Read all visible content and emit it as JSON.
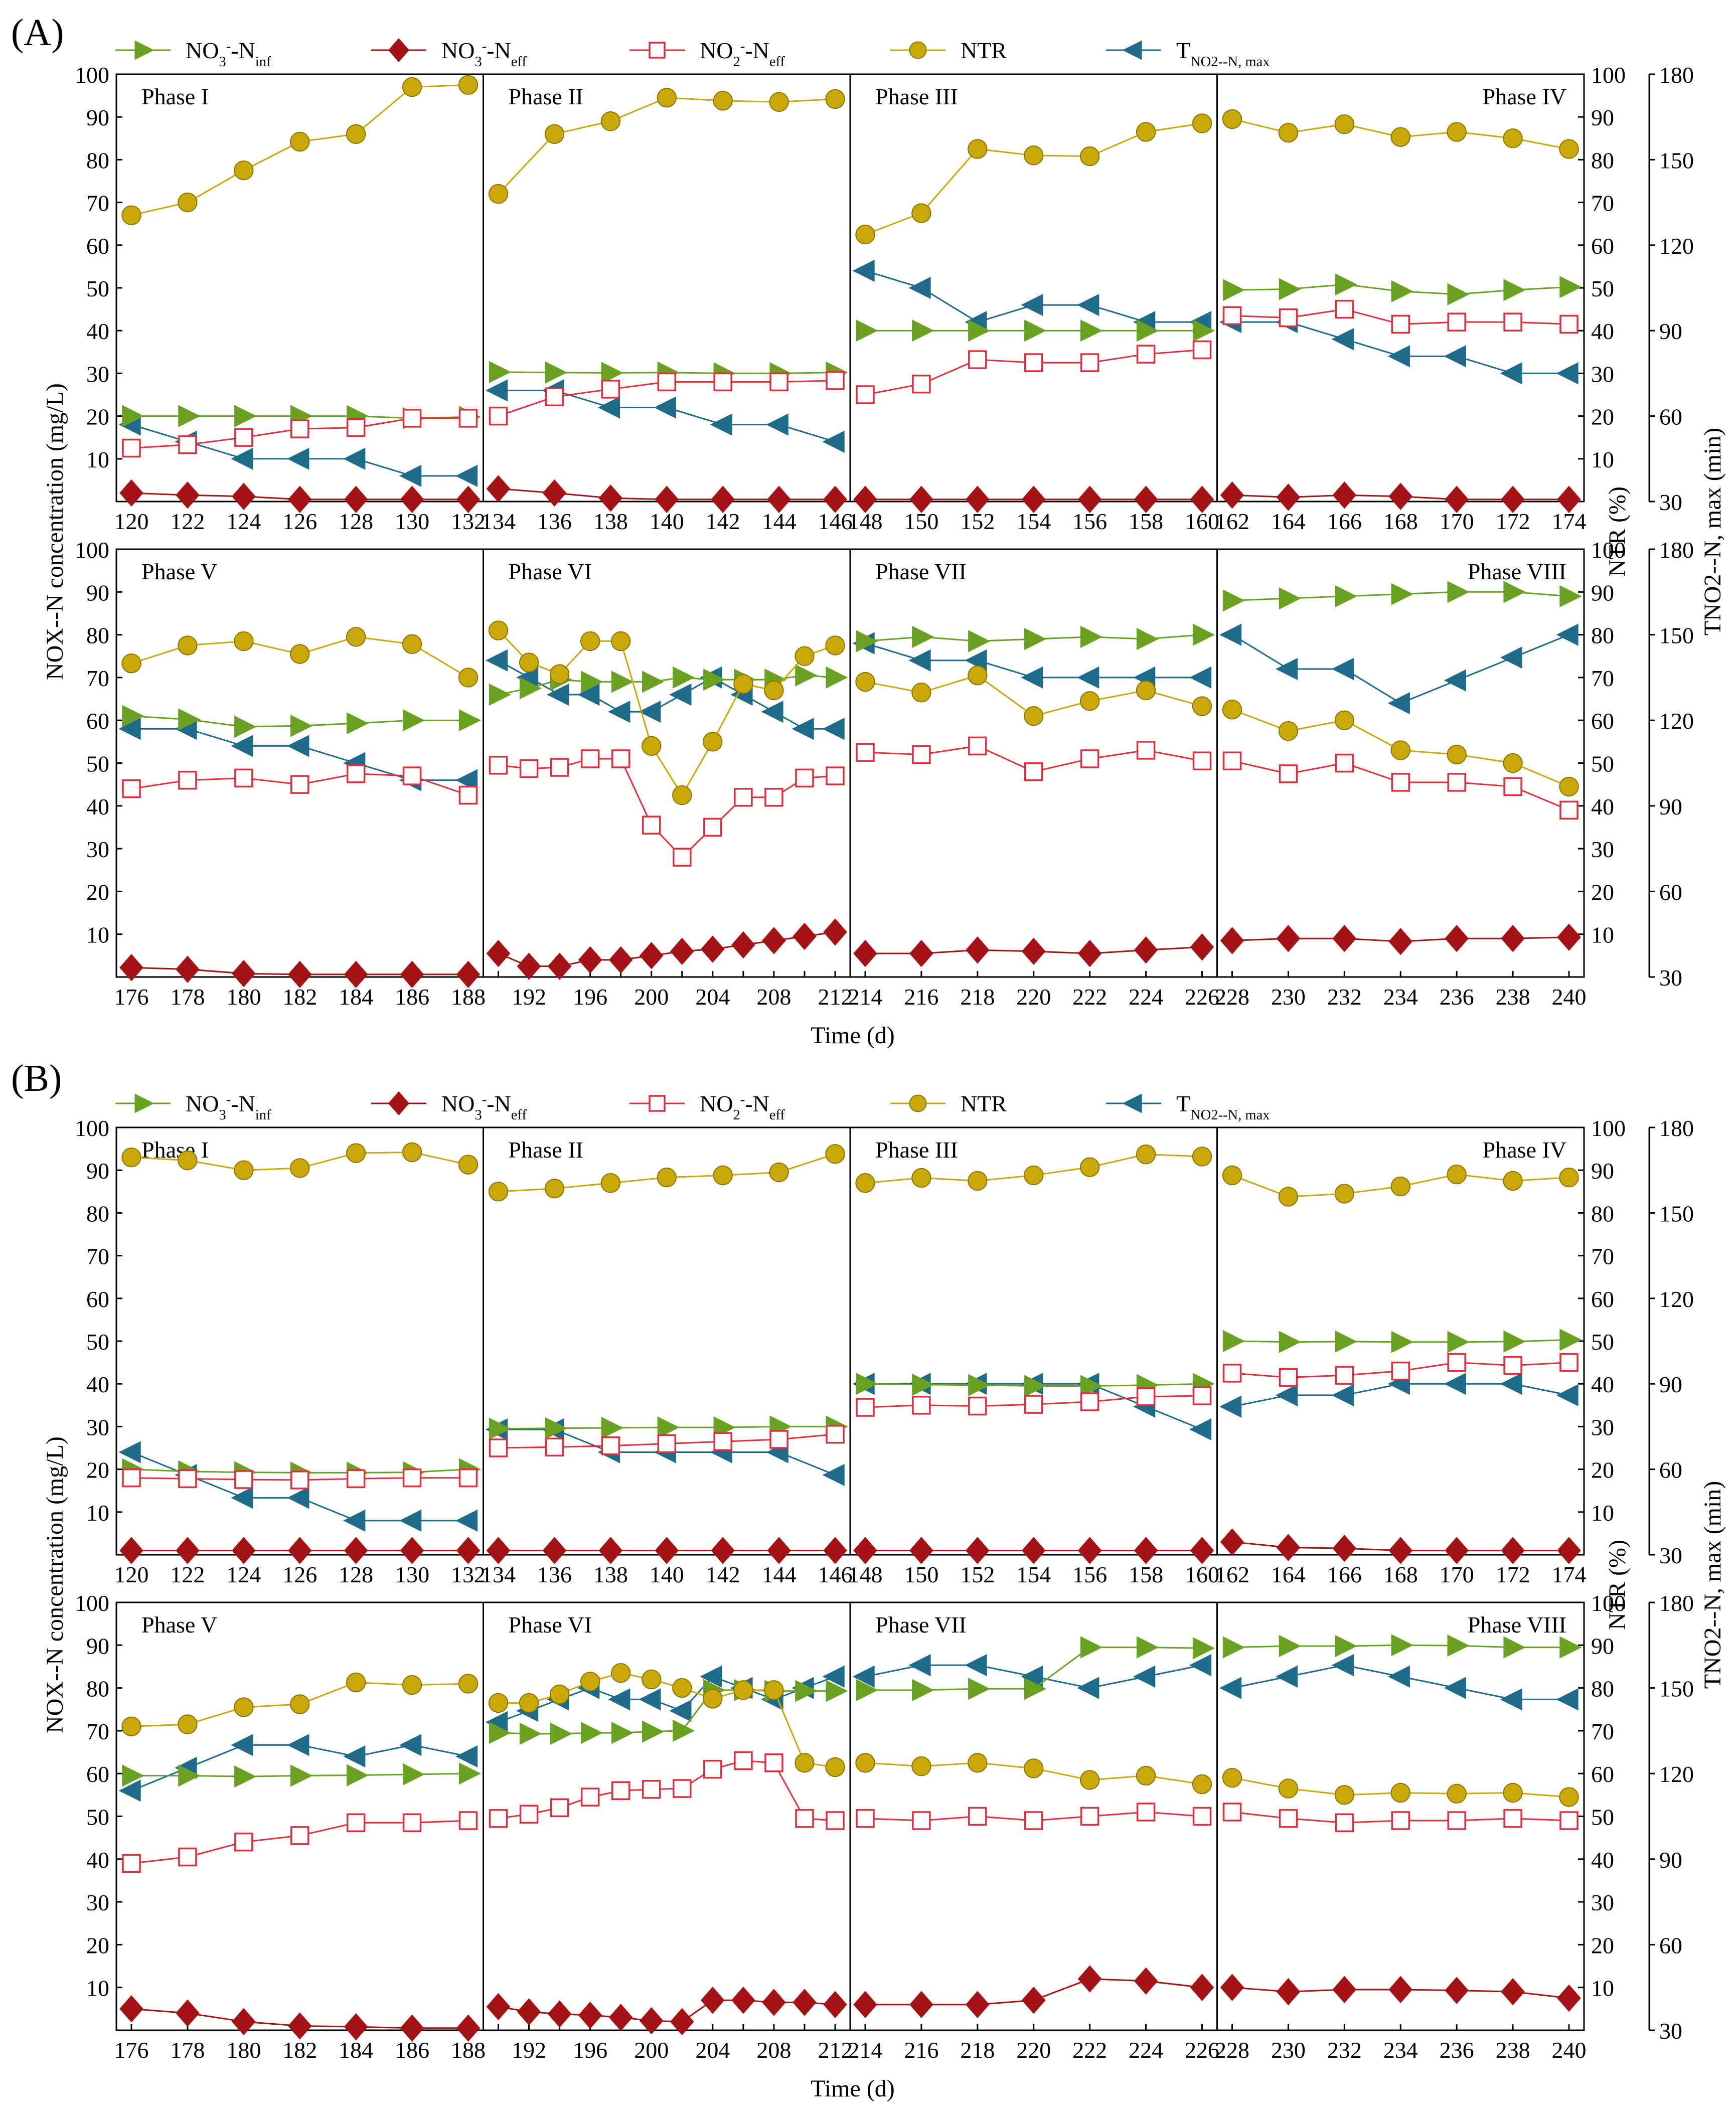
{
  "figure": {
    "panel_labels": [
      "(A)",
      "(B)"
    ],
    "x_axis_title": "Time (d)",
    "left_axis_title": "NOX--N concentration (mg/L)",
    "right_axis_title_1": "NTR (%)",
    "right_axis_title_2": "TNO2--N, max (min)",
    "legend": {
      "no3_inf": "NO3--Ninf",
      "no3_eff": "NO3--Neff",
      "no2_eff": "NO2--Neff",
      "ntr": "NTR",
      "t_no2_max": "TNO2--N, max"
    },
    "colors": {
      "no3_inf": "#6aa122",
      "no3_eff": "#a31214",
      "no2_eff": "#e0303e",
      "ntr": "#c9a809",
      "t_no2_max": "#1f6c8a"
    },
    "icons": {
      "no3_inf": "right-triangle-marker",
      "no3_eff": "diamond-marker",
      "no2_eff": "open-square-marker",
      "ntr": "circle-marker",
      "t_no2_max": "left-triangle-marker"
    }
  },
  "chart_data": [
    {
      "id": "A",
      "type": "line",
      "panel_label": "(A)",
      "xlabel": "Time (d)",
      "ylabel_left": "NOX--N concentration (mg/L)",
      "ylabel_right_1": "NTR (%)",
      "ylabel_right_2": "TNO2--N, max (min)",
      "ylim_left": [
        0,
        100
      ],
      "ylim_right_ntr": [
        0,
        100
      ],
      "ylim_right_t": [
        30,
        180
      ],
      "left_ticks": [
        10,
        20,
        30,
        40,
        50,
        60,
        70,
        80,
        90,
        100
      ],
      "ntr_ticks": [
        10,
        20,
        30,
        40,
        50,
        60,
        70,
        80,
        90,
        100
      ],
      "t_ticks": [
        30,
        60,
        90,
        120,
        150,
        180
      ],
      "phases": [
        {
          "label": "Phase I",
          "x": [
            120,
            122,
            124,
            126,
            128,
            130,
            132
          ],
          "no3_inf": [
            20,
            20,
            20,
            20,
            20,
            19.5,
            19.8
          ],
          "no3_eff": [
            2,
            1.5,
            1.2,
            0.5,
            0.5,
            0.5,
            0.5
          ],
          "no2_eff": [
            12.5,
            13.3,
            15,
            17,
            17.3,
            19.5,
            19.5
          ],
          "ntr": [
            67,
            70,
            77.5,
            84.2,
            86,
            97,
            97.5
          ],
          "t_no2_max": [
            57,
            51,
            45,
            45,
            45,
            39,
            39
          ]
        },
        {
          "label": "Phase II",
          "x": [
            134,
            136,
            138,
            140,
            142,
            144,
            146
          ],
          "no3_inf": [
            30.3,
            30.2,
            30.1,
            30.2,
            30,
            30,
            30.2
          ],
          "no3_eff": [
            3,
            2,
            0.8,
            0.5,
            0.5,
            0.5,
            0.5
          ],
          "no2_eff": [
            20,
            24.5,
            26.3,
            28,
            28,
            28,
            28.3
          ],
          "ntr": [
            72,
            86,
            89,
            94.5,
            93.8,
            93.5,
            94.2
          ],
          "t_no2_max": [
            69,
            69,
            63,
            63,
            57,
            57,
            51
          ]
        },
        {
          "label": "Phase III",
          "x": [
            148,
            150,
            152,
            154,
            156,
            158,
            160
          ],
          "no3_inf": [
            40,
            40,
            40,
            40,
            40,
            40,
            40
          ],
          "no3_eff": [
            0.5,
            0.5,
            0.5,
            0.5,
            0.5,
            0.5,
            0.5
          ],
          "no2_eff": [
            25,
            27.5,
            33.2,
            32.5,
            32.5,
            34.5,
            35.5
          ],
          "ntr": [
            62.5,
            67.5,
            82.5,
            81,
            80.8,
            86.5,
            88.5
          ],
          "t_no2_max": [
            111,
            105,
            93,
            99,
            99,
            93,
            93
          ]
        },
        {
          "label": "Phase IV",
          "x": [
            162,
            164,
            166,
            168,
            170,
            172,
            174
          ],
          "no3_inf": [
            49.5,
            49.7,
            50.8,
            49.2,
            48.5,
            49.5,
            50.2
          ],
          "no3_eff": [
            1.5,
            1,
            1.5,
            1.2,
            0.5,
            0.5,
            0.5
          ],
          "no2_eff": [
            43.5,
            43,
            45,
            41.5,
            42,
            42,
            41.5
          ],
          "ntr": [
            89.5,
            86.3,
            88.3,
            85.3,
            86.5,
            85,
            82.5
          ],
          "t_no2_max": [
            93,
            93,
            87,
            81,
            81,
            75,
            75
          ]
        },
        {
          "label": "Phase V",
          "x": [
            176,
            178,
            180,
            182,
            184,
            186,
            188
          ],
          "no3_inf": [
            61,
            60.2,
            58.5,
            58.7,
            59.3,
            60,
            60
          ],
          "no3_eff": [
            2.2,
            1.8,
            0.8,
            0.6,
            0.6,
            0.6,
            0.6
          ],
          "no2_eff": [
            44,
            46,
            46.5,
            45,
            47.5,
            47,
            42.5
          ],
          "ntr": [
            73.3,
            77.5,
            78.5,
            75.5,
            79.5,
            77.8,
            70
          ],
          "t_no2_max": [
            117,
            117,
            111,
            111,
            105,
            99,
            99
          ]
        },
        {
          "label": "Phase VI",
          "x": [
            190,
            192,
            194,
            196,
            198,
            200,
            202,
            204,
            206,
            208,
            210,
            212
          ],
          "no3_inf": [
            66,
            67.5,
            69.5,
            69,
            69,
            69,
            70,
            69.5,
            69.5,
            69.5,
            70.5,
            70
          ],
          "no3_eff": [
            5.5,
            2.5,
            2.5,
            4,
            4,
            5,
            6,
            6.5,
            7.5,
            8.5,
            9.5,
            10.5
          ],
          "no2_eff": [
            49.5,
            48.7,
            49,
            51,
            51,
            35.5,
            28,
            35,
            42,
            42,
            46.5,
            47
          ],
          "ntr": [
            81,
            73.5,
            70.8,
            78.5,
            78.5,
            54,
            42.5,
            55,
            68.5,
            67,
            75,
            77.5
          ],
          "t_no2_max": [
            141,
            135,
            129,
            129,
            123,
            123,
            129,
            135,
            129,
            123,
            117,
            117
          ]
        },
        {
          "label": "Phase VII",
          "x": [
            214,
            216,
            218,
            220,
            222,
            224,
            226
          ],
          "no3_inf": [
            78.5,
            79.5,
            78.5,
            79,
            79.5,
            79,
            80
          ],
          "no3_eff": [
            5.5,
            5.5,
            6.3,
            6,
            5.5,
            6.3,
            7
          ],
          "no2_eff": [
            52.5,
            52,
            54,
            48,
            51,
            53,
            50.5
          ],
          "ntr": [
            69,
            66.5,
            70.5,
            61,
            64.5,
            67,
            63.3
          ],
          "t_no2_max": [
            147,
            141,
            141,
            135,
            135,
            135,
            135
          ]
        },
        {
          "label": "Phase VIII",
          "x": [
            228,
            230,
            232,
            234,
            236,
            238,
            240
          ],
          "no3_inf": [
            88,
            88.5,
            89,
            89.5,
            90,
            90,
            89
          ],
          "no3_eff": [
            8.5,
            9,
            9,
            8.3,
            9,
            9,
            9.3
          ],
          "no2_eff": [
            50.5,
            47.5,
            50,
            45.5,
            45.5,
            44.5,
            39
          ],
          "ntr": [
            62.5,
            57.5,
            60,
            53,
            52,
            50,
            44.5
          ],
          "t_no2_max": [
            150,
            138,
            138,
            126,
            134,
            142,
            150
          ]
        }
      ]
    },
    {
      "id": "B",
      "type": "line",
      "panel_label": "(B)",
      "xlabel": "Time (d)",
      "ylabel_left": "NOX--N concentration (mg/L)",
      "ylabel_right_1": "NTR (%)",
      "ylabel_right_2": "TNO2--N, max (min)",
      "ylim_left": [
        0,
        100
      ],
      "ylim_right_ntr": [
        0,
        100
      ],
      "ylim_right_t": [
        30,
        180
      ],
      "left_ticks": [
        10,
        20,
        30,
        40,
        50,
        60,
        70,
        80,
        90,
        100
      ],
      "ntr_ticks": [
        10,
        20,
        30,
        40,
        50,
        60,
        70,
        80,
        90,
        100
      ],
      "t_ticks": [
        30,
        60,
        90,
        120,
        150,
        180
      ],
      "phases": [
        {
          "label": "Phase I",
          "x": [
            120,
            122,
            124,
            126,
            128,
            130,
            132
          ],
          "no3_inf": [
            20,
            19.5,
            19.3,
            19.2,
            19.2,
            19.3,
            20
          ],
          "no3_eff": [
            1,
            1,
            1,
            1,
            1,
            1,
            1
          ],
          "no2_eff": [
            18,
            17.8,
            17.6,
            17.5,
            17.8,
            18,
            18
          ],
          "ntr": [
            93,
            92.3,
            90,
            90.5,
            94,
            94.2,
            91.3
          ],
          "t_no2_max": [
            66,
            58,
            50,
            50,
            42,
            42,
            42
          ]
        },
        {
          "label": "Phase II",
          "x": [
            134,
            136,
            138,
            140,
            142,
            144,
            146
          ],
          "no3_inf": [
            29.5,
            29.6,
            29.7,
            29.8,
            29.8,
            30,
            30
          ],
          "no3_eff": [
            1,
            1,
            1,
            1,
            1,
            1,
            1
          ],
          "no2_eff": [
            25,
            25.2,
            25.5,
            26,
            26.5,
            27,
            28.2
          ],
          "ntr": [
            85,
            85.7,
            87,
            88.3,
            88.8,
            89.5,
            93.8
          ],
          "t_no2_max": [
            74,
            74,
            66,
            66,
            66,
            66,
            58
          ]
        },
        {
          "label": "Phase III",
          "x": [
            148,
            150,
            152,
            154,
            156,
            158,
            160
          ],
          "no3_inf": [
            40,
            39.8,
            39.7,
            39.5,
            39.5,
            39.7,
            40
          ],
          "no3_eff": [
            1,
            1,
            1,
            1,
            1,
            1,
            1
          ],
          "no2_eff": [
            34.5,
            35,
            34.8,
            35.2,
            35.8,
            37,
            37.2
          ],
          "ntr": [
            87,
            88.2,
            87.5,
            88.8,
            90.7,
            93.7,
            93.2
          ],
          "t_no2_max": [
            90,
            90,
            90,
            90,
            90,
            82,
            74
          ]
        },
        {
          "label": "Phase IV",
          "x": [
            162,
            164,
            166,
            168,
            170,
            172,
            174
          ],
          "no3_inf": [
            50,
            49.8,
            49.9,
            49.8,
            49.8,
            49.9,
            50.3
          ],
          "no3_eff": [
            3,
            1.7,
            1.5,
            1,
            1,
            1,
            1
          ],
          "no2_eff": [
            42.5,
            41.5,
            42,
            43,
            45,
            44.3,
            45
          ],
          "ntr": [
            88.8,
            83.8,
            84.5,
            86.2,
            89,
            87.5,
            88.3
          ],
          "t_no2_max": [
            82,
            86,
            86,
            90,
            90,
            90,
            86
          ]
        },
        {
          "label": "Phase V",
          "x": [
            176,
            178,
            180,
            182,
            184,
            186,
            188
          ],
          "no3_inf": [
            59.5,
            59.5,
            59.3,
            59.5,
            59.6,
            59.8,
            60
          ],
          "no3_eff": [
            5,
            4,
            2,
            1,
            0.8,
            0.5,
            0.5
          ],
          "no2_eff": [
            39,
            40.5,
            44,
            45.5,
            48.5,
            48.5,
            49
          ],
          "ntr": [
            71,
            71.5,
            75.5,
            76.2,
            81.3,
            80.7,
            81
          ],
          "t_no2_max": [
            114,
            122,
            130,
            130,
            126,
            130,
            126
          ]
        },
        {
          "label": "Phase VI",
          "x": [
            190,
            192,
            194,
            196,
            198,
            200,
            202,
            204,
            206,
            208,
            210,
            212
          ],
          "no3_inf": [
            69.5,
            69.3,
            69.3,
            69.5,
            69.5,
            69.8,
            70,
            79.5,
            79.5,
            79.3,
            79.3,
            79.3
          ],
          "no3_eff": [
            5.5,
            4.3,
            3.8,
            3.5,
            3,
            2.2,
            2,
            7,
            7,
            6.5,
            6.5,
            6
          ],
          "no2_eff": [
            49.5,
            50.5,
            52,
            54.5,
            56,
            56.3,
            56.5,
            61,
            63,
            62.5,
            49.5,
            49
          ],
          "ntr": [
            76.5,
            76.5,
            78.5,
            81.5,
            83.5,
            82,
            80,
            77.5,
            79.5,
            79.5,
            62.5,
            61.5
          ],
          "t_no2_max": [
            138,
            142,
            146,
            150,
            146,
            146,
            142,
            154,
            150,
            146,
            150,
            154
          ]
        },
        {
          "label": "Phase VII",
          "x": [
            214,
            216,
            218,
            220,
            222,
            224,
            226
          ],
          "no3_inf": [
            79.5,
            79.5,
            79.8,
            79.8,
            89.5,
            89.5,
            89.3
          ],
          "no3_eff": [
            6,
            6,
            6,
            7,
            12,
            11.5,
            10
          ],
          "no2_eff": [
            49.5,
            49,
            50,
            49,
            50,
            51,
            50
          ],
          "ntr": [
            62.5,
            61.7,
            62.5,
            61.2,
            58.5,
            59.5,
            57.5
          ],
          "t_no2_max": [
            154,
            158,
            158,
            154,
            150,
            154,
            158
          ]
        },
        {
          "label": "Phase VIII",
          "x": [
            228,
            230,
            232,
            234,
            236,
            238,
            240
          ],
          "no3_inf": [
            89.5,
            89.8,
            89.8,
            90,
            89.9,
            89.5,
            89.5
          ],
          "no3_eff": [
            10,
            9,
            9.5,
            9.5,
            9.3,
            9,
            7.5
          ],
          "no2_eff": [
            51,
            49.5,
            48.5,
            49,
            49,
            49.5,
            49
          ],
          "ntr": [
            59,
            56.5,
            55,
            55.5,
            55.3,
            55.5,
            54.5
          ],
          "t_no2_max": [
            150,
            154,
            158,
            154,
            150,
            146,
            146
          ]
        }
      ]
    }
  ]
}
